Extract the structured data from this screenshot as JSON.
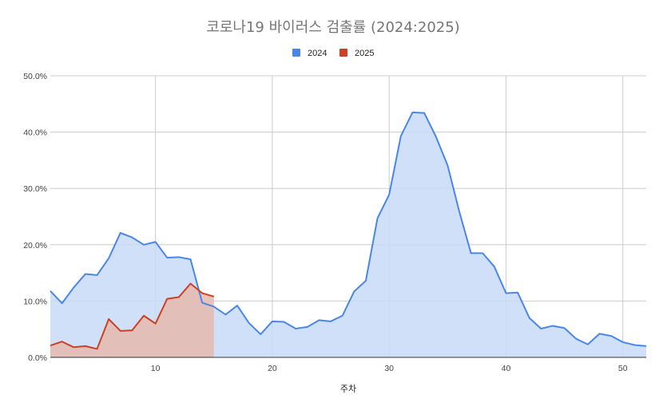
{
  "chart_data": {
    "type": "area",
    "title": "코로나19 바이러스 검출률 (2024:2025)",
    "xlabel": "주차",
    "ylabel": "",
    "xlim": [
      1,
      52
    ],
    "ylim": [
      0,
      50
    ],
    "x_ticks": [
      10,
      20,
      30,
      40,
      50
    ],
    "y_ticks": [
      0,
      10,
      20,
      30,
      40,
      50
    ],
    "y_tick_labels": [
      "0.0%",
      "10.0%",
      "20.0%",
      "30.0%",
      "40.0%",
      "50.0%"
    ],
    "grid": true,
    "legend_position": "top",
    "series": [
      {
        "name": "2024",
        "color": "#4a86e8",
        "fill": "#c9daf8",
        "x": [
          1,
          2,
          3,
          4,
          5,
          6,
          7,
          8,
          9,
          10,
          11,
          12,
          13,
          14,
          15,
          16,
          17,
          18,
          19,
          20,
          21,
          22,
          23,
          24,
          25,
          26,
          27,
          28,
          29,
          30,
          31,
          32,
          33,
          34,
          35,
          36,
          37,
          38,
          39,
          40,
          41,
          42,
          43,
          44,
          45,
          46,
          47,
          48,
          49,
          50,
          51,
          52
        ],
        "values": [
          11.8,
          9.6,
          12.4,
          14.8,
          14.6,
          17.6,
          22.1,
          21.3,
          20.0,
          20.5,
          17.7,
          17.8,
          17.4,
          9.7,
          9.0,
          7.6,
          9.2,
          6.1,
          4.1,
          6.4,
          6.3,
          5.1,
          5.4,
          6.6,
          6.4,
          7.4,
          11.7,
          13.6,
          24.7,
          28.9,
          39.3,
          43.5,
          43.4,
          39.2,
          34.1,
          25.9,
          18.5,
          18.5,
          16.1,
          11.4,
          11.5,
          7.0,
          5.1,
          5.6,
          5.2,
          3.3,
          2.3,
          4.2,
          3.8,
          2.7,
          2.2,
          2.0
        ]
      },
      {
        "name": "2025",
        "color": "#cc4125",
        "fill": "#e6b8af",
        "x": [
          1,
          2,
          3,
          4,
          5,
          6,
          7,
          8,
          9,
          10,
          11,
          12,
          13,
          14,
          15
        ],
        "values": [
          2.1,
          2.8,
          1.8,
          2.0,
          1.5,
          6.8,
          4.7,
          4.8,
          7.4,
          6.0,
          10.4,
          10.7,
          13.1,
          11.4,
          10.8
        ]
      }
    ]
  }
}
